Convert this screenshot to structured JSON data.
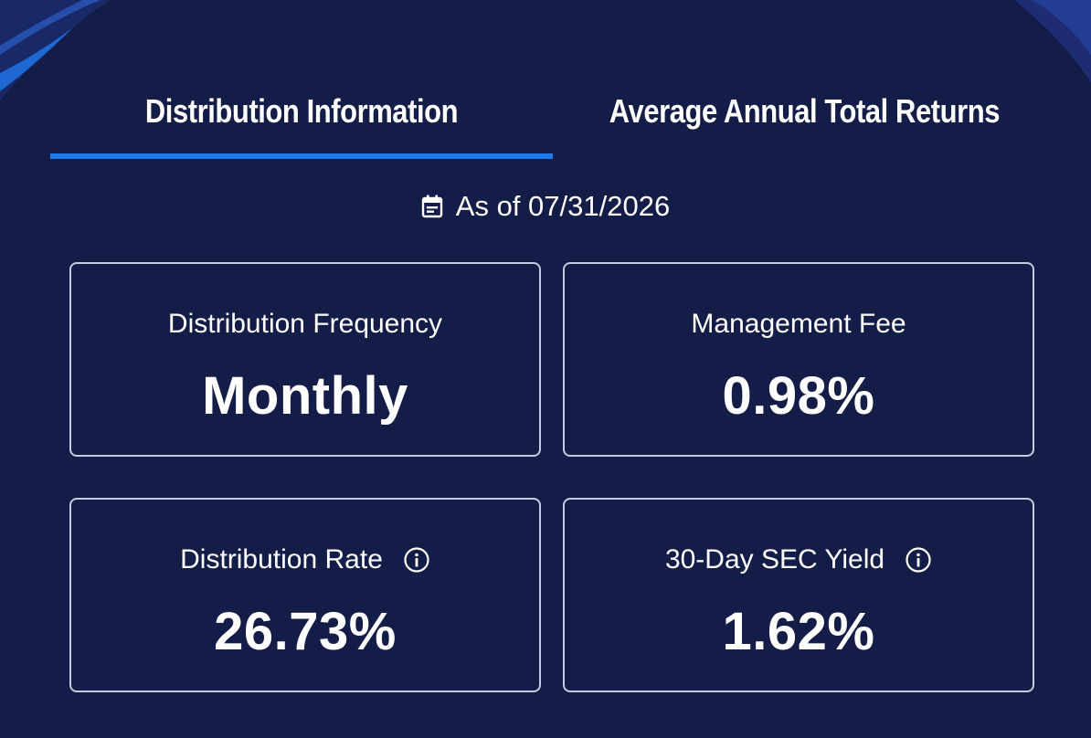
{
  "tabs": [
    {
      "label": "Distribution Information",
      "active": true
    },
    {
      "label": "Average Annual Total Returns",
      "active": false
    }
  ],
  "as_of": {
    "icon": "calendar-icon",
    "text": "As of 07/31/2026"
  },
  "cards": [
    {
      "label": "Distribution Frequency",
      "value": "Monthly",
      "has_info": false
    },
    {
      "label": "Management Fee",
      "value": "0.98%",
      "has_info": false
    },
    {
      "label": "Distribution Rate",
      "value": "26.73%",
      "has_info": true
    },
    {
      "label": "30-Day SEC Yield",
      "value": "1.62%",
      "has_info": true
    }
  ],
  "colors": {
    "background": "#141d48",
    "accent": "#1f7ae8",
    "card_border": "#c5cbe0",
    "text": "#ffffff"
  }
}
